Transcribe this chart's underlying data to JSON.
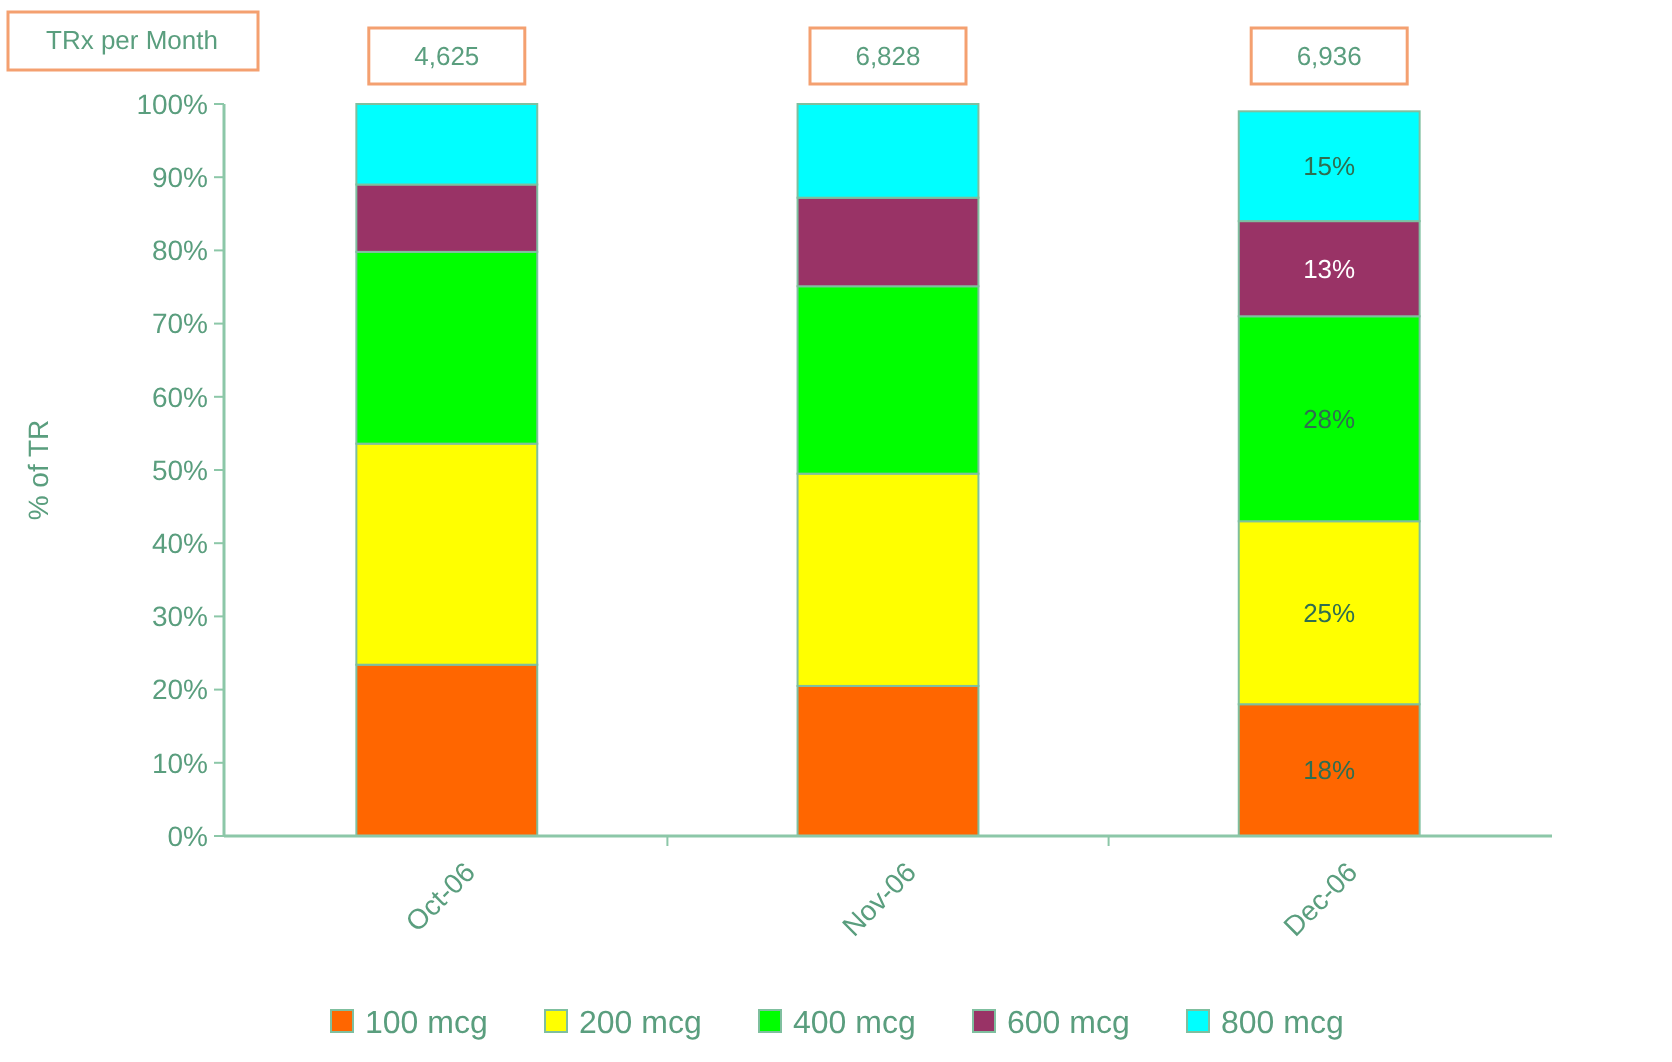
{
  "chart_data": {
    "type": "bar",
    "stacked": true,
    "ylabel": "% of TR",
    "categories": [
      "Oct-06",
      "Nov-06",
      "Dec-06"
    ],
    "series": [
      {
        "name": "100 mcg",
        "color": "#ff6600",
        "values": [
          23.4,
          20.5,
          18
        ],
        "value_labels": [
          null,
          null,
          "18%"
        ]
      },
      {
        "name": "200 mcg",
        "color": "#ffff00",
        "values": [
          30.2,
          29,
          25
        ],
        "value_labels": [
          null,
          null,
          "25%"
        ]
      },
      {
        "name": "400 mcg",
        "color": "#00ff00",
        "values": [
          26.2,
          25.6,
          28
        ],
        "value_labels": [
          null,
          null,
          "28%"
        ]
      },
      {
        "name": "600 mcg",
        "color": "#993366",
        "values": [
          9.2,
          12.1,
          13
        ],
        "value_labels": [
          null,
          null,
          "13%"
        ]
      },
      {
        "name": "800 mcg",
        "color": "#00ffff",
        "values": [
          11,
          12.8,
          15
        ],
        "value_labels": [
          null,
          null,
          "15%"
        ]
      }
    ],
    "annotations": [
      "TRx per Month",
      "4,625",
      "6,828",
      "6,936"
    ],
    "ylim": [
      0,
      100
    ],
    "yticks": [
      {
        "value": 0,
        "label": "0%"
      },
      {
        "value": 10,
        "label": "10%"
      },
      {
        "value": 20,
        "label": "20%"
      },
      {
        "value": 30,
        "label": "30%"
      },
      {
        "value": 40,
        "label": "40%"
      },
      {
        "value": 50,
        "label": "50%"
      },
      {
        "value": 60,
        "label": "60%"
      },
      {
        "value": 70,
        "label": "70%"
      },
      {
        "value": 80,
        "label": "80%"
      },
      {
        "value": 90,
        "label": "90%"
      },
      {
        "value": 100,
        "label": "100%"
      }
    ],
    "grid": false,
    "legend": "bottom"
  }
}
